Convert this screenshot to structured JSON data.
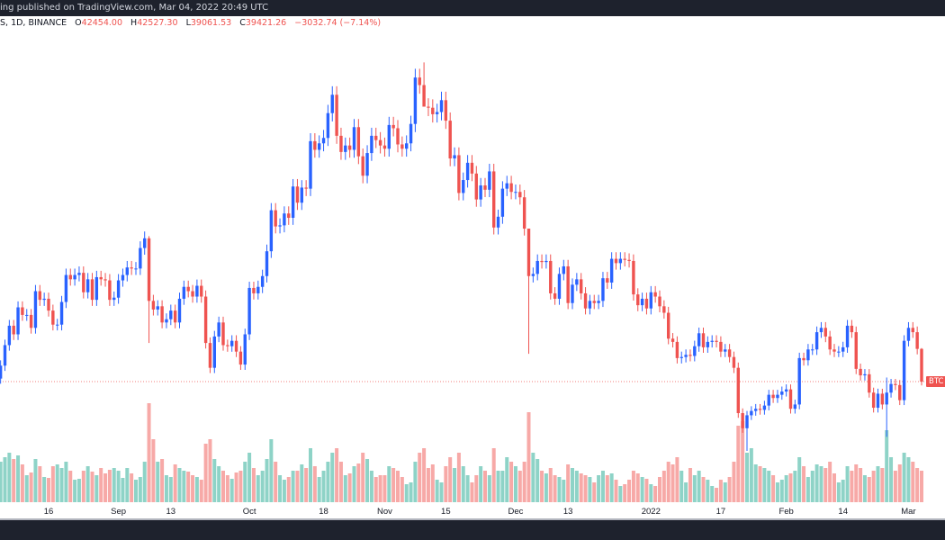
{
  "header": {
    "published_text": "ing published on TradingView.com, Mar 04, 2022 20:49 UTC"
  },
  "legend": {
    "symbol": "S, 1D, BINANCE",
    "open_label": "O",
    "open": "42454.00",
    "high_label": "H",
    "high": "42527.30",
    "low_label": "L",
    "low": "39061.53",
    "close_label": "C",
    "close": "39421.26",
    "change": "−3032.74 (−7.14%)"
  },
  "price_tag": "BTC",
  "colors": {
    "up": "#2962ff",
    "down": "#ef5350",
    "vol_up": "#8ed3c7",
    "vol_down": "#f7a9a7",
    "background": "#ffffff",
    "bar": "#1e222d"
  },
  "chart_data": {
    "type": "candlestick",
    "interval": "1D",
    "exchange": "BINANCE",
    "price_unit_note": "close prices in thousands USDT",
    "first_open": 39.7,
    "x_ticks": [
      {
        "label": "16",
        "day": 11
      },
      {
        "label": "Sep",
        "day": 27
      },
      {
        "label": "13",
        "day": 39
      },
      {
        "label": "Oct",
        "day": 57
      },
      {
        "label": "18",
        "day": 74
      },
      {
        "label": "Nov",
        "day": 88
      },
      {
        "label": "15",
        "day": 102
      },
      {
        "label": "Dec",
        "day": 118
      },
      {
        "label": "13",
        "day": 130
      },
      {
        "label": "2022",
        "day": 149
      },
      {
        "label": "17",
        "day": 165
      },
      {
        "label": "Feb",
        "day": 180
      },
      {
        "label": "14",
        "day": 193
      },
      {
        "label": "Mar",
        "day": 208
      }
    ],
    "close": [
      40.9,
      42.8,
      44.6,
      43.8,
      46.3,
      45.6,
      45.6,
      44.4,
      47.8,
      47.0,
      47.1,
      46.0,
      44.7,
      44.7,
      46.8,
      49.3,
      48.9,
      49.3,
      49.5,
      47.7,
      48.9,
      47.0,
      49.1,
      48.9,
      48.8,
      47.0,
      47.2,
      48.8,
      49.3,
      50.0,
      49.9,
      49.9,
      51.8,
      52.7,
      46.9,
      46.1,
      46.4,
      44.9,
      45.2,
      46.0,
      44.9,
      47.1,
      48.2,
      47.8,
      47.3,
      48.3,
      47.3,
      43.0,
      40.7,
      43.6,
      44.9,
      42.8,
      42.7,
      43.2,
      42.2,
      41.0,
      43.8,
      48.1,
      47.6,
      48.2,
      49.2,
      51.5,
      55.3,
      53.8,
      53.9,
      55.0,
      54.6,
      57.5,
      56.0,
      57.4,
      57.3,
      61.7,
      60.9,
      61.5,
      62.0,
      64.3,
      66.0,
      62.2,
      60.7,
      61.3,
      60.9,
      63.0,
      60.3,
      58.5,
      60.6,
      62.2,
      61.8,
      61.3,
      61.0,
      63.2,
      62.9,
      61.4,
      61.0,
      61.5,
      63.3,
      67.6,
      66.9,
      64.9,
      64.8,
      64.2,
      64.4,
      65.5,
      63.6,
      60.1,
      60.4,
      56.9,
      58.1,
      59.7,
      58.7,
      56.3,
      57.6,
      57.2,
      58.9,
      53.7,
      54.7,
      57.3,
      57.8,
      57.0,
      57.0,
      56.5,
      53.6,
      49.2,
      49.4,
      50.6,
      50.5,
      50.6,
      47.6,
      47.1,
      49.4,
      50.1,
      46.7,
      48.4,
      48.9,
      47.6,
      46.2,
      46.9,
      46.7,
      46.9,
      49.0,
      48.6,
      50.8,
      50.4,
      50.8,
      50.7,
      50.6,
      47.5,
      46.5,
      47.1,
      46.2,
      47.7,
      47.3,
      46.4,
      45.8,
      43.4,
      43.1,
      41.6,
      41.7,
      41.9,
      41.8,
      42.7,
      43.9,
      42.6,
      43.1,
      43.2,
      43.1,
      42.2,
      42.4,
      41.7,
      40.7,
      36.5,
      35.1,
      36.3,
      36.7,
      36.9,
      36.8,
      37.2,
      38.2,
      37.9,
      38.2,
      38.5,
      38.7,
      36.9,
      37.3,
      41.6,
      41.4,
      42.4,
      42.4,
      44.0,
      44.4,
      43.6,
      42.4,
      42.2,
      42.2,
      42.6,
      44.6,
      44.0,
      40.6,
      40.0,
      40.1,
      38.4,
      37.0,
      38.3,
      37.3,
      38.4,
      39.2,
      39.1,
      37.7,
      43.2,
      44.4,
      44.0,
      42.454,
      39.421
    ],
    "wick_extremes": {
      "34": [
        52.9,
        43.0
      ],
      "97": [
        69.0,
        66.3
      ],
      "121": [
        51.9,
        42.0
      ],
      "171": [
        36.7,
        33.0
      ],
      "203": [
        39.8,
        34.3
      ],
      "211": [
        42.527,
        39.062
      ]
    },
    "volume_thousands": [
      45,
      50,
      55,
      48,
      52,
      42,
      30,
      33,
      48,
      40,
      28,
      27,
      40,
      42,
      38,
      45,
      35,
      25,
      26,
      35,
      40,
      34,
      30,
      38,
      32,
      36,
      38,
      35,
      27,
      38,
      32,
      25,
      28,
      45,
      110,
      70,
      45,
      48,
      30,
      28,
      42,
      38,
      35,
      34,
      30,
      28,
      25,
      65,
      70,
      48,
      40,
      35,
      30,
      26,
      33,
      35,
      45,
      55,
      38,
      30,
      35,
      48,
      70,
      45,
      30,
      25,
      28,
      35,
      35,
      42,
      38,
      60,
      40,
      28,
      35,
      45,
      55,
      60,
      45,
      30,
      32,
      40,
      43,
      55,
      48,
      35,
      28,
      30,
      30,
      40,
      38,
      35,
      28,
      20,
      22,
      45,
      55,
      60,
      38,
      42,
      25,
      22,
      40,
      50,
      38,
      55,
      40,
      30,
      22,
      30,
      40,
      35,
      30,
      60,
      35,
      35,
      50,
      45,
      40,
      35,
      45,
      100,
      55,
      48,
      35,
      32,
      38,
      30,
      28,
      25,
      42,
      38,
      35,
      32,
      30,
      28,
      22,
      30,
      35,
      30,
      32,
      25,
      18,
      20,
      25,
      35,
      32,
      28,
      26,
      20,
      18,
      28,
      35,
      45,
      42,
      50,
      35,
      22,
      38,
      30,
      35,
      28,
      25,
      18,
      16,
      25,
      22,
      28,
      45,
      85,
      90,
      55,
      60,
      42,
      40,
      38,
      35,
      30,
      22,
      25,
      30,
      32,
      35,
      50,
      40,
      28,
      35,
      42,
      40,
      38,
      45,
      32,
      22,
      25,
      40,
      35,
      42,
      38,
      30,
      28,
      35,
      40,
      38,
      80,
      50,
      35,
      42,
      55,
      50,
      45,
      38,
      35
    ]
  }
}
